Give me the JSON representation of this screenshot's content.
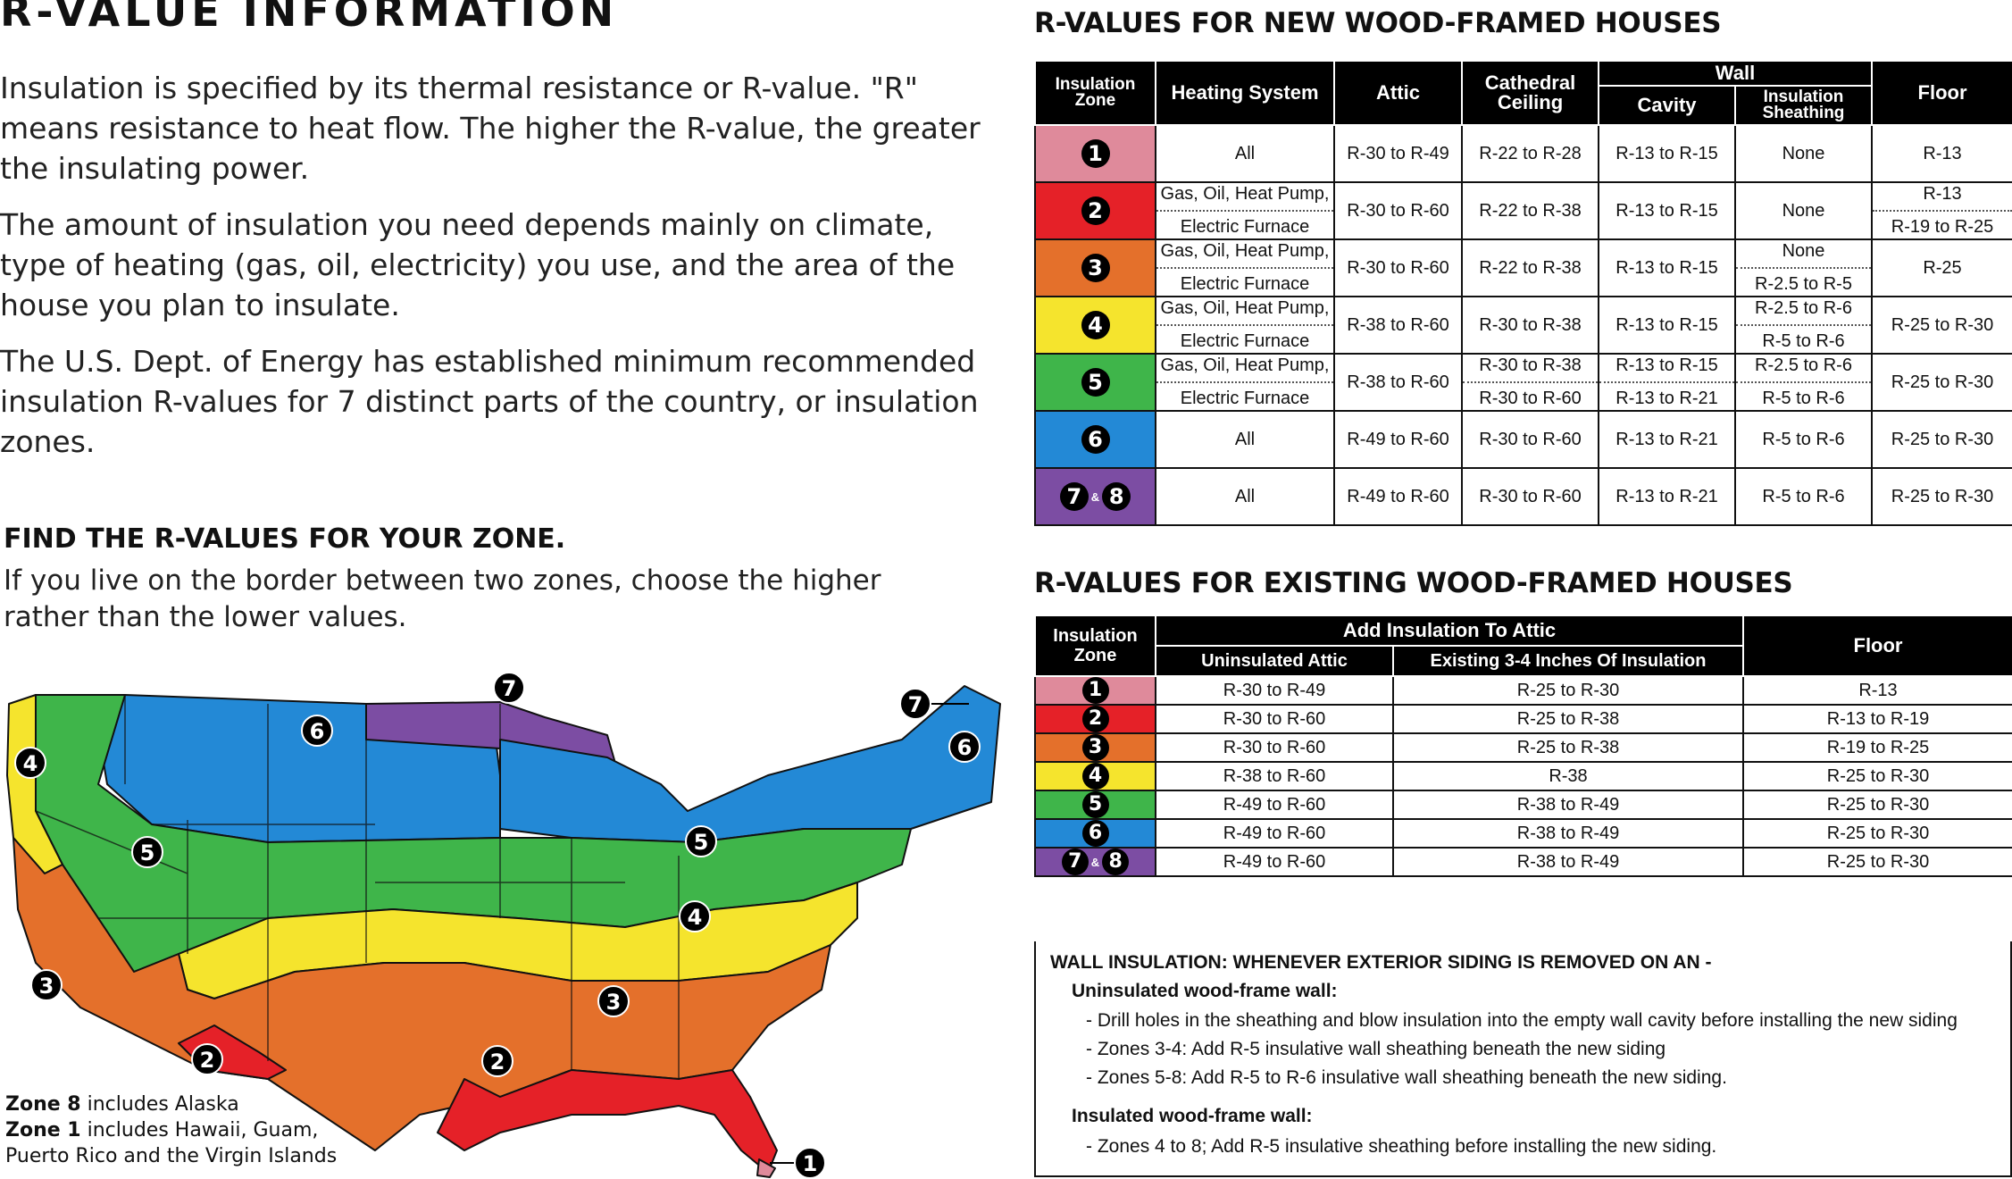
{
  "page": {
    "title": "R-VALUE INFORMATION",
    "intro": [
      "Insulation is specified by its thermal resistance or R-value. \"R\" means resistance to heat flow. The higher the R-value, the greater the insulating power.",
      "The amount of insulation you need depends mainly on climate, type of heating (gas, oil, electricity) you use, and the area of the house you plan to insulate.",
      "The U.S. Dept. of Energy has established minimum recommended insulation R-values for 7 distinct parts of the country, or insulation zones."
    ],
    "find_title": "FIND THE R-VALUES FOR YOUR ZONE.",
    "find_text": "If you live on the border between two zones, choose the higher rather than the lower values."
  },
  "map": {
    "labels": [
      "7",
      "6",
      "4",
      "5",
      "3",
      "2",
      "1"
    ],
    "note_zone8_bold": "Zone 8",
    "note_zone8_text": " includes Alaska",
    "note_zone1_bold": "Zone 1",
    "note_zone1_text": " includes Hawaii, Guam, Puerto Rico and the Virgin Islands"
  },
  "zone_colors": {
    "1": "#df8a9b",
    "2": "#e52128",
    "3": "#e4702b",
    "4": "#f5e42d",
    "5": "#3fb54a",
    "6": "#2389d6",
    "78": "#7c4da3"
  },
  "new_houses": {
    "title": "R-VALUES FOR NEW WOOD-FRAMED HOUSES",
    "headers": {
      "zone": "Insulation Zone",
      "heating": "Heating System",
      "attic": "Attic",
      "cathedral": "Cathedral Ceiling",
      "wall": "Wall",
      "cavity": "Cavity",
      "sheathing": "Insulation Sheathing",
      "floor": "Floor"
    },
    "rows": [
      {
        "zone": "1",
        "heating": [
          "All"
        ],
        "attic": "R-30 to R-49",
        "cathedral": [
          "R-22 to R-28"
        ],
        "cavity": [
          "R-13 to R-15"
        ],
        "sheathing": [
          "None"
        ],
        "floor": [
          "R-13"
        ]
      },
      {
        "zone": "2",
        "heating": [
          "Gas, Oil, Heat Pump,",
          "Electric Furnace"
        ],
        "attic": "R-30 to R-60",
        "cathedral": [
          "R-22 to R-38"
        ],
        "cavity": [
          "R-13 to R-15"
        ],
        "sheathing": [
          "None"
        ],
        "floor": [
          "R-13",
          "R-19 to R-25"
        ]
      },
      {
        "zone": "3",
        "heating": [
          "Gas, Oil, Heat Pump,",
          "Electric Furnace"
        ],
        "attic": "R-30 to R-60",
        "cathedral": [
          "R-22 to R-38"
        ],
        "cavity": [
          "R-13 to R-15"
        ],
        "sheathing": [
          "None",
          "R-2.5 to R-5"
        ],
        "floor": [
          "R-25"
        ]
      },
      {
        "zone": "4",
        "heating": [
          "Gas, Oil, Heat Pump,",
          "Electric Furnace"
        ],
        "attic": "R-38 to R-60",
        "cathedral": [
          "R-30 to R-38"
        ],
        "cavity": [
          "R-13 to R-15"
        ],
        "sheathing": [
          "R-2.5 to R-6",
          "R-5 to R-6"
        ],
        "floor": [
          "R-25 to R-30"
        ]
      },
      {
        "zone": "5",
        "heating": [
          "Gas, Oil, Heat Pump,",
          "Electric Furnace"
        ],
        "attic": "R-38 to R-60",
        "cathedral": [
          "R-30 to R-38",
          "R-30 to R-60"
        ],
        "cavity": [
          "R-13 to R-15",
          "R-13 to R-21"
        ],
        "sheathing": [
          "R-2.5 to R-6",
          "R-5 to R-6"
        ],
        "floor": [
          "R-25 to R-30"
        ]
      },
      {
        "zone": "6",
        "heating": [
          "All"
        ],
        "attic": "R-49 to R-60",
        "cathedral": [
          "R-30 to R-60"
        ],
        "cavity": [
          "R-13 to R-21"
        ],
        "sheathing": [
          "R-5 to R-6"
        ],
        "floor": [
          "R-25 to R-30"
        ]
      },
      {
        "zone": "78",
        "heating": [
          "All"
        ],
        "attic": "R-49 to R-60",
        "cathedral": [
          "R-30 to R-60"
        ],
        "cavity": [
          "R-13 to R-21"
        ],
        "sheathing": [
          "R-5 to R-6"
        ],
        "floor": [
          "R-25 to R-30"
        ]
      }
    ]
  },
  "existing_houses": {
    "title": "R-VALUES FOR EXISTING WOOD-FRAMED HOUSES",
    "headers": {
      "zone": "Insulation Zone",
      "add_attic": "Add Insulation To Attic",
      "uninsulated": "Uninsulated Attic",
      "existing": "Existing 3-4 Inches Of Insulation",
      "floor": "Floor"
    },
    "rows": [
      {
        "zone": "1",
        "uninsulated": "R-30 to R-49",
        "existing": "R-25 to R-30",
        "floor": "R-13"
      },
      {
        "zone": "2",
        "uninsulated": "R-30 to R-60",
        "existing": "R-25 to R-38",
        "floor": "R-13 to R-19"
      },
      {
        "zone": "3",
        "uninsulated": "R-30 to R-60",
        "existing": "R-25 to R-38",
        "floor": "R-19 to R-25"
      },
      {
        "zone": "4",
        "uninsulated": "R-38 to R-60",
        "existing": "R-38",
        "floor": "R-25 to R-30"
      },
      {
        "zone": "5",
        "uninsulated": "R-49 to R-60",
        "existing": "R-38 to R-49",
        "floor": "R-25 to R-30"
      },
      {
        "zone": "6",
        "uninsulated": "R-49 to R-60",
        "existing": "R-38 to R-49",
        "floor": "R-25 to R-30"
      },
      {
        "zone": "78",
        "uninsulated": "R-49 to R-60",
        "existing": "R-38 to R-49",
        "floor": "R-25 to R-30"
      }
    ]
  },
  "wall_insulation": {
    "heading": "WALL INSULATION: WHENEVER EXTERIOR SIDING IS REMOVED ON AN -",
    "uninsulated_title": "Uninsulated wood-frame wall:",
    "uninsulated_items": [
      "- Drill holes in the sheathing and blow insulation into the empty wall cavity before installing the new siding",
      "- Zones 3-4: Add R-5 insulative wall sheathing beneath the new siding",
      "- Zones 5-8: Add R-5 to R-6 insulative wall sheathing beneath the new siding."
    ],
    "insulated_title": "Insulated wood-frame wall:",
    "insulated_items": [
      "- Zones 4 to 8; Add R-5 insulative sheathing before installing the new siding."
    ]
  },
  "zone_badge": {
    "amp": "&",
    "z7": "7",
    "z8": "8"
  }
}
